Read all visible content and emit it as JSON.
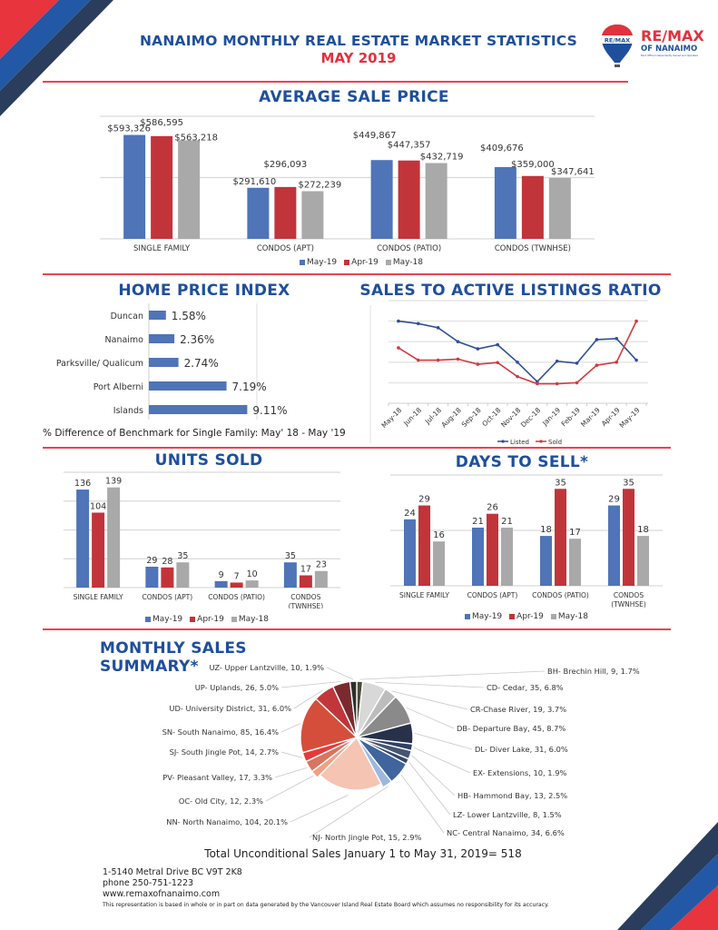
{
  "header": {
    "title": "NANAIMO MONTHLY REAL ESTATE MARKET STATISTICS",
    "subtitle": "MAY 2019",
    "logo": {
      "balloon_text": "RE/MAX",
      "brand": "RE/MAX",
      "office": "OF NANAIMO",
      "tagline": "Each Office Independently Owned and Operated",
      "icon": "hot-air-balloon-logo"
    }
  },
  "colors": {
    "brand_blue": "#1f4f9c",
    "brand_red": "#e0323c",
    "navy": "#2a3d5c",
    "series_may19": "#4f74b8",
    "series_apr19": "#c1343a",
    "series_may18": "#a9a9a9"
  },
  "legend_labels": [
    "May-19",
    "Apr-19",
    "May-18"
  ],
  "chart_data": [
    {
      "id": "average_sale_price",
      "type": "bar",
      "title": "AVERAGE SALE PRICE",
      "categories": [
        "SINGLE FAMILY",
        "CONDOS (APT)",
        "CONDOS (PATIO)",
        "CONDOS (TWNHSE)"
      ],
      "series": [
        {
          "name": "May-19",
          "values": [
            593326,
            291610,
            449867,
            409676
          ],
          "labels": [
            "$593,326",
            "$291,610",
            "$449,867",
            "$409,676"
          ]
        },
        {
          "name": "Apr-19",
          "values": [
            586595,
            296093,
            447357,
            359000
          ],
          "labels": [
            "$586,595",
            "$296,093",
            "$447,357",
            "$359,000"
          ]
        },
        {
          "name": "May-18",
          "values": [
            563218,
            272239,
            432719,
            347641
          ],
          "labels": [
            "$563,218",
            "$272,239",
            "$432,719",
            "$347,641"
          ]
        }
      ],
      "ylim": [
        0,
        700000
      ],
      "gridlines": [
        0,
        350000,
        700000
      ],
      "legend": "bottom",
      "xlabel": "",
      "ylabel": ""
    },
    {
      "id": "home_price_index",
      "type": "bar",
      "orientation": "horizontal",
      "title": "HOME PRICE INDEX",
      "categories": [
        "Duncan",
        "Nanaimo",
        "Parksville/ Qualicum",
        "Port Alberni",
        "Islands"
      ],
      "values": [
        1.58,
        2.36,
        2.74,
        7.19,
        9.11
      ],
      "labels": [
        "1.58%",
        "2.36%",
        "2.74%",
        "7.19%",
        "9.11%"
      ],
      "xlim": [
        0,
        10
      ],
      "caption": "% Difference of Benchmark for Single Family: May' 18 - May '19"
    },
    {
      "id": "sales_to_active_listings_ratio",
      "type": "line",
      "title": "SALES TO ACTIVE LISTINGS RATIO",
      "x": [
        "May-18",
        "Jun-18",
        "Jul-18",
        "Aug-18",
        "Sep-18",
        "Oct-18",
        "Nov-18",
        "Dec-18",
        "Jan-19",
        "Feb-19",
        "Mar-19",
        "Apr-19",
        "May-19"
      ],
      "series": [
        {
          "name": "Listed",
          "values": [
            4.0,
            3.88,
            3.68,
            3.0,
            2.65,
            2.85,
            2.0,
            1.05,
            2.05,
            1.95,
            3.1,
            3.15,
            2.1
          ]
        },
        {
          "name": "Sold",
          "values": [
            2.7,
            2.1,
            2.1,
            2.15,
            1.9,
            1.98,
            1.3,
            0.95,
            0.95,
            1.0,
            1.85,
            2.0,
            4.0
          ]
        }
      ],
      "ylim": [
        0,
        5
      ],
      "y_tick_labels_shown": false,
      "grid": true,
      "legend": "bottom"
    },
    {
      "id": "units_sold",
      "type": "bar",
      "title": "UNITS SOLD",
      "categories": [
        "SINGLE FAMILY",
        "CONDOS (APT)",
        "CONDOS (PATIO)",
        "CONDOS (TWNHSE)"
      ],
      "series": [
        {
          "name": "May-19",
          "values": [
            136,
            29,
            9,
            35
          ]
        },
        {
          "name": "Apr-19",
          "values": [
            104,
            28,
            7,
            17
          ]
        },
        {
          "name": "May-18",
          "values": [
            139,
            35,
            10,
            23
          ]
        }
      ],
      "ylim": [
        0,
        160
      ],
      "gridlines": [
        0,
        40,
        80,
        120,
        160
      ],
      "legend": "bottom"
    },
    {
      "id": "days_to_sell",
      "type": "bar",
      "title": "DAYS TO SELL*",
      "categories": [
        "SINGLE FAMILY",
        "CONDOS (APT)",
        "CONDOS (PATIO)",
        "CONDOS (TWNHSE)"
      ],
      "series": [
        {
          "name": "May-19",
          "values": [
            24,
            21,
            18,
            29
          ]
        },
        {
          "name": "Apr-19",
          "values": [
            29,
            26,
            35,
            35
          ]
        },
        {
          "name": "May-18",
          "values": [
            16,
            21,
            17,
            18
          ]
        }
      ],
      "ylim": [
        0,
        40
      ],
      "gridlines": [
        0,
        20,
        40
      ],
      "legend": "bottom"
    },
    {
      "id": "monthly_sales_summary",
      "type": "pie",
      "title": "MONTHLY SALES SUMMARY*",
      "slices": [
        {
          "code": "BH",
          "label": "BH- Brechin Hill, 9, 1.7%",
          "value": 9,
          "pct": 1.7,
          "color": "#4a4a36"
        },
        {
          "code": "CD",
          "label": "CD- Cedar, 35, 6.8%",
          "value": 35,
          "pct": 6.8,
          "color": "#d8d8d8"
        },
        {
          "code": "CR",
          "label": "CR-Chase River, 19, 3.7%",
          "value": 19,
          "pct": 3.7,
          "color": "#bdbdbd"
        },
        {
          "code": "DB",
          "label": "DB- Departure Bay, 45, 8.7%",
          "value": 45,
          "pct": 8.7,
          "color": "#8a8a8a"
        },
        {
          "code": "DL",
          "label": "DL- Diver Lake, 31, 6.0%",
          "value": 31,
          "pct": 6.0,
          "color": "#273149"
        },
        {
          "code": "EX",
          "label": "EX- Extensions, 10, 1.9%",
          "value": 10,
          "pct": 1.9,
          "color": "#2f3f66"
        },
        {
          "code": "HB",
          "label": "HB- Hammond Bay, 13, 2.5%",
          "value": 13,
          "pct": 2.5,
          "color": "#465670"
        },
        {
          "code": "LZ",
          "label": "LZ- Lower Lantzville, 8, 1.5%",
          "value": 8,
          "pct": 1.5,
          "color": "#34476e"
        },
        {
          "code": "NC",
          "label": "NC- Central Nanaimo, 34, 6.6%",
          "value": 34,
          "pct": 6.6,
          "color": "#40649c"
        },
        {
          "code": "NJ",
          "label": "NJ- North Jingle Pot, 15, 2.9%",
          "value": 15,
          "pct": 2.9,
          "color": "#9db8de"
        },
        {
          "code": "NN",
          "label": "NN- North Nanaimo, 104, 20.1%",
          "value": 104,
          "pct": 20.1,
          "color": "#f5c4b2"
        },
        {
          "code": "OC",
          "label": "OC- Old City, 12, 2.3%",
          "value": 12,
          "pct": 2.3,
          "color": "#f0a184"
        },
        {
          "code": "PV",
          "label": "PV- Pleasant Valley, 17, 3.3%",
          "value": 17,
          "pct": 3.3,
          "color": "#d87560"
        },
        {
          "code": "SJ",
          "label": "SJ- South Jingle Pot, 14, 2.7%",
          "value": 14,
          "pct": 2.7,
          "color": "#e63a3a"
        },
        {
          "code": "SN",
          "label": "SN- South Nanaimo, 85, 16.4%",
          "value": 85,
          "pct": 16.4,
          "color": "#d54e3c"
        },
        {
          "code": "UD",
          "label": "UD- University District, 31, 6.0%",
          "value": 31,
          "pct": 6.0,
          "color": "#c1363a"
        },
        {
          "code": "UP",
          "label": "UP- Uplands, 26, 5.0%",
          "value": 26,
          "pct": 5.0,
          "color": "#7a2a2e"
        },
        {
          "code": "UZ",
          "label": "UZ- Upper Lantzville, 10, 1.9%",
          "value": 10,
          "pct": 1.9,
          "color": "#2e2e2a"
        }
      ],
      "total_text": "Total Unconditional Sales January 1 to May 31, 2019= 518"
    }
  ],
  "footer": {
    "address": "1-5140 Metral Drive BC V9T 2K8",
    "phone": "phone 250-751-1223",
    "website": "www.remaxofnanaimo.com",
    "disclaimer": "This representation is based in whole or in part on data generated by the Vancouver Island Real Estate Board which assumes no responsibility for its accuracy."
  }
}
